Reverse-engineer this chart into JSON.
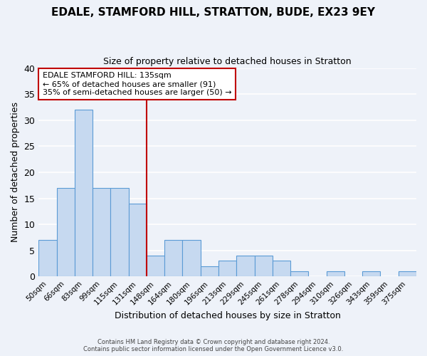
{
  "title": "EDALE, STAMFORD HILL, STRATTON, BUDE, EX23 9EY",
  "subtitle": "Size of property relative to detached houses in Stratton",
  "xlabel": "Distribution of detached houses by size in Stratton",
  "ylabel": "Number of detached properties",
  "bar_labels": [
    "50sqm",
    "66sqm",
    "83sqm",
    "99sqm",
    "115sqm",
    "131sqm",
    "148sqm",
    "164sqm",
    "180sqm",
    "196sqm",
    "213sqm",
    "229sqm",
    "245sqm",
    "261sqm",
    "278sqm",
    "294sqm",
    "310sqm",
    "326sqm",
    "343sqm",
    "359sqm",
    "375sqm"
  ],
  "bar_values": [
    7,
    17,
    32,
    17,
    17,
    14,
    4,
    7,
    7,
    2,
    3,
    4,
    4,
    3,
    1,
    0,
    1,
    0,
    1,
    0,
    1
  ],
  "bar_color": "#c6d9f0",
  "bar_edge_color": "#5b9bd5",
  "property_line_label": "EDALE STAMFORD HILL: 135sqm",
  "annotation_line1": "← 65% of detached houses are smaller (91)",
  "annotation_line2": "35% of semi-detached houses are larger (50) →",
  "annotation_box_color": "#ffffff",
  "annotation_box_edge_color": "#c00000",
  "vline_color": "#c00000",
  "ylim": [
    0,
    40
  ],
  "yticks": [
    0,
    5,
    10,
    15,
    20,
    25,
    30,
    35,
    40
  ],
  "footer1": "Contains HM Land Registry data © Crown copyright and database right 2024.",
  "footer2": "Contains public sector information licensed under the Open Government Licence v3.0.",
  "background_color": "#eef2f9",
  "grid_color": "#ffffff"
}
